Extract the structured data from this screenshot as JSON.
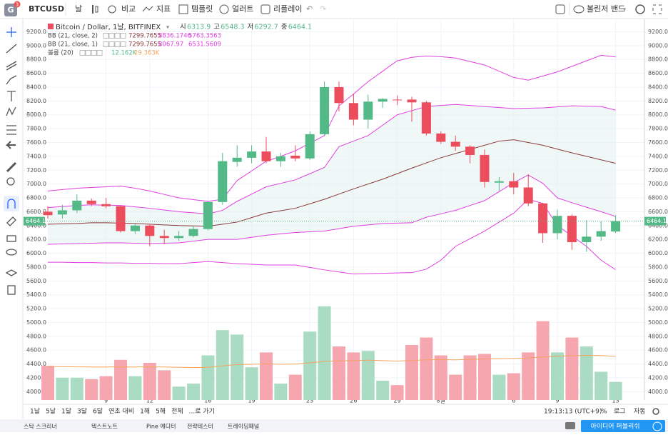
{
  "toolbar": {
    "logo": "G",
    "badge": "3",
    "interval": "날",
    "compare": "비교",
    "indicators": "지표",
    "templates": "템플릿",
    "alert": "얼러트",
    "replay": "리플레이",
    "layout": "볼린저 밴드"
  },
  "chart_data": {
    "type": "candlestick",
    "symbol": "BTCUSD",
    "title": "Bitcoin / Dollar, 1날, BITFINEX",
    "ohlc_labels": {
      "open": "시",
      "high": "고",
      "low": "저",
      "close": "종"
    },
    "categories": [
      null,
      null,
      null,
      null,
      "9",
      null,
      null,
      "12",
      null,
      null,
      null,
      "16",
      null,
      null,
      "19",
      null,
      null,
      null,
      "23",
      null,
      null,
      "26",
      null,
      null,
      "29",
      null,
      null,
      "8월",
      null,
      null,
      null,
      null,
      "6",
      null,
      null,
      "9",
      null,
      null,
      null,
      "13"
    ],
    "open": [
      6600,
      6560,
      6620,
      6760,
      6710,
      6680,
      6320,
      6400,
      6250,
      6220,
      6250,
      6350,
      6740,
      7320,
      7380,
      7470,
      7330,
      7410,
      7370,
      7720,
      8400,
      8170,
      7930,
      8190,
      8220,
      8220,
      8180,
      7730,
      7610,
      7540,
      7420,
      7020,
      7040,
      6950,
      6720,
      6290,
      6540,
      6160,
      6240,
      6313.9
    ],
    "high": [
      6680,
      6700,
      6850,
      6790,
      6800,
      6690,
      6420,
      6420,
      6340,
      6320,
      6400,
      6750,
      7450,
      7560,
      7560,
      7680,
      7450,
      7560,
      7760,
      8480,
      8480,
      8300,
      8290,
      8240,
      8280,
      8260,
      8200,
      7760,
      7700,
      7560,
      7500,
      7100,
      7160,
      7140,
      6730,
      6630,
      6560,
      6480,
      6460,
      6548.3
    ],
    "low": [
      6500,
      6500,
      6580,
      6680,
      6650,
      6300,
      6280,
      6100,
      6130,
      6180,
      6230,
      6330,
      6700,
      7250,
      7300,
      7300,
      7250,
      7330,
      7350,
      7700,
      8050,
      7850,
      7800,
      8100,
      8140,
      7900,
      7700,
      7580,
      7480,
      7300,
      6950,
      6900,
      6850,
      6680,
      6150,
      6200,
      6050,
      6020,
      6180,
      6292.7
    ],
    "close": [
      6550,
      6620,
      6760,
      6710,
      6680,
      6320,
      6400,
      6250,
      6220,
      6250,
      6350,
      6740,
      7330,
      7380,
      7470,
      7330,
      7400,
      7370,
      7720,
      8400,
      8170,
      7930,
      8190,
      8230,
      8210,
      8180,
      7730,
      7610,
      7540,
      7420,
      7030,
      7040,
      6950,
      6720,
      6290,
      6540,
      6160,
      6240,
      6320,
      6464.1
    ],
    "up_color": "#53b987",
    "down_color": "#eb4d5c",
    "ylim": [
      3880,
      9380
    ],
    "yticks": [
      {
        "value": 9200,
        "label": "9200.0"
      },
      {
        "value": 9000,
        "label": "9000.0"
      },
      {
        "value": 8800,
        "label": "8800.0"
      },
      {
        "value": 8600,
        "label": "8600.0"
      },
      {
        "value": 8400,
        "label": "8400.0"
      },
      {
        "value": 8200,
        "label": "8200.0"
      },
      {
        "value": 8000,
        "label": "8000.0"
      },
      {
        "value": 7800,
        "label": "7800.0"
      },
      {
        "value": 7600,
        "label": "7600.0"
      },
      {
        "value": 7400,
        "label": "7400.0"
      },
      {
        "value": 7200,
        "label": "7200.0"
      },
      {
        "value": 7000,
        "label": "7000.0"
      },
      {
        "value": 6800,
        "label": "6800.0"
      },
      {
        "value": 6600,
        "label": "6600.0"
      },
      {
        "value": 6400,
        "label": "6400.0"
      },
      {
        "value": 6200,
        "label": "6200.0"
      },
      {
        "value": 6000,
        "label": "6000.0"
      },
      {
        "value": 5800,
        "label": "5800.0"
      },
      {
        "value": 5600,
        "label": "5600.0"
      },
      {
        "value": 5400,
        "label": "5400.0"
      },
      {
        "value": 5200,
        "label": "5200.0"
      },
      {
        "value": 5000,
        "label": "5000.0"
      },
      {
        "value": 4800,
        "label": "4800.0"
      },
      {
        "value": 4600,
        "label": "4600.0"
      },
      {
        "value": 4400,
        "label": "4400.0"
      },
      {
        "value": 4200,
        "label": "4200.0"
      },
      {
        "value": 4000,
        "label": "4000.0"
      }
    ],
    "grid": true,
    "bollinger": {
      "basis_color": "#8b3a3a",
      "basis": [
        6420,
        6425,
        6430,
        6440,
        6440,
        6435,
        6430,
        6420,
        6410,
        6400,
        6395,
        6390,
        6420,
        6450,
        6515,
        6580,
        6615,
        6650,
        6715,
        6780,
        6855,
        6930,
        7000,
        7070,
        7150,
        7230,
        7305,
        7380,
        7440,
        7500,
        7560,
        7620,
        7640,
        7600,
        7560,
        7505,
        7450,
        7400,
        7350,
        7299.7655
      ],
      "bands": [
        {
          "name": "BB (21, close, 2)",
          "color": "#e040e0",
          "upper": [
            6900,
            6920,
            6940,
            6950,
            6960,
            6970,
            6940,
            6900,
            6850,
            6800,
            6775,
            6750,
            6780,
            7050,
            7190,
            7330,
            7400,
            7480,
            7590,
            7700,
            8130,
            8300,
            8480,
            8630,
            8780,
            8830,
            8850,
            8840,
            8820,
            8770,
            8720,
            8630,
            8540,
            8500,
            8560,
            8620,
            8700,
            8780,
            8860,
            8836.1746
          ],
          "lower": [
            5870,
            5870,
            5865,
            5865,
            5860,
            5860,
            5855,
            5855,
            5850,
            5850,
            5865,
            5880,
            5865,
            5850,
            5840,
            5830,
            5830,
            5830,
            5795,
            5760,
            5730,
            5700,
            5705,
            5710,
            5715,
            5720,
            5770,
            5900,
            6100,
            6210,
            6320,
            6450,
            6580,
            6780,
            6720,
            6400,
            6250,
            6100,
            5900,
            5763.3563
          ]
        },
        {
          "name": "BB (21, close, 1)",
          "color": "#e040e0",
          "fill": "#e4f2f2",
          "upper": [
            6660,
            6675,
            6690,
            6700,
            6695,
            6690,
            6670,
            6650,
            6625,
            6600,
            6585,
            6570,
            6620,
            6750,
            6855,
            6960,
            7010,
            7060,
            7150,
            7240,
            7540,
            7620,
            7700,
            7850,
            8000,
            8060,
            8120,
            8135,
            8150,
            8135,
            8120,
            8105,
            8090,
            8095,
            8100,
            8115,
            8130,
            8125,
            8120,
            8067.97
          ],
          "lower": [
            6130,
            6135,
            6140,
            6145,
            6150,
            6150,
            6145,
            6140,
            6145,
            6150,
            6175,
            6200,
            6200,
            6200,
            6230,
            6260,
            6280,
            6300,
            6310,
            6320,
            6355,
            6390,
            6410,
            6430,
            6435,
            6440,
            6520,
            6570,
            6620,
            6690,
            6760,
            6890,
            7020,
            7130,
            7010,
            6800,
            6730,
            6665,
            6600,
            6531.5609
          ]
        }
      ]
    },
    "volume": {
      "name": "볼륨 (20)",
      "vlim": [
        0,
        256
      ],
      "up_color": "#a9dcc3",
      "down_color": "#f5a6ae",
      "ma_color": "#f4a460",
      "values": [
        23,
        15,
        15,
        14,
        16,
        27,
        16,
        25,
        20,
        9,
        11,
        30,
        47,
        44,
        22,
        32,
        11,
        17,
        46,
        63,
        36,
        32,
        33,
        13,
        10,
        37,
        42,
        30,
        17,
        30,
        31,
        17,
        18,
        32,
        53,
        32,
        42,
        36,
        19,
        12.162
      ],
      "value_label": "12.162K",
      "ma": [
        22.5,
        22.4,
        22.3,
        22.2,
        22.2,
        22.3,
        22.2,
        22.3,
        22.2,
        22,
        21.8,
        22,
        23,
        23.8,
        24,
        24.3,
        24,
        24.2,
        25,
        26,
        26.3,
        26.5,
        26.8,
        26.5,
        26.2,
        26.6,
        27,
        27.2,
        27,
        27.3,
        27.6,
        27.8,
        28,
        28.3,
        29,
        29.4,
        29.8,
        30,
        29.9,
        29.363
      ],
      "ma_label": "29.363K"
    }
  },
  "ranges": [
    "1날",
    "5날",
    "1달",
    "3달",
    "6달",
    "연초 대비",
    "1해",
    "5해",
    "전체",
    "...로 가기"
  ],
  "status": {
    "time": "19:13:13 (UTC+9)",
    "percent": "%",
    "log": "로그",
    "auto": "자동"
  },
  "tabs": {
    "items": [
      "스탁 스크리너",
      "텍스트노트",
      "Pine 에디터",
      "전략테스터",
      "트레이딩패널"
    ],
    "publish": "아이디어 퍼블리쉬"
  }
}
